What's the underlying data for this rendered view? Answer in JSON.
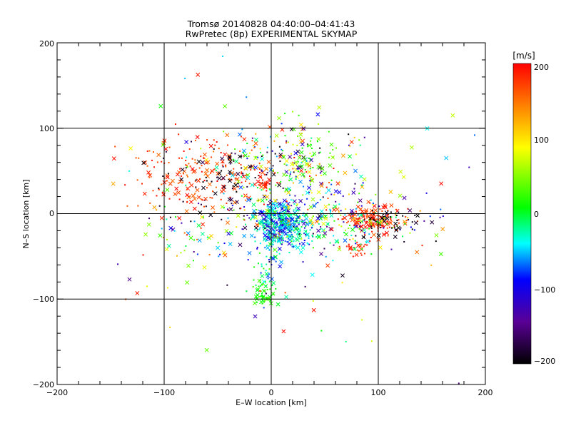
{
  "chart_data": {
    "type": "scatter",
    "title": "Tromsø 20140828 04:40:00–04:41:43",
    "subtitle": "RwPretec (8p) EXPERIMENTAL SKYMAP",
    "xlabel": "E–W location [km]",
    "ylabel": "N–S location [km]",
    "xlim": [
      -200,
      200
    ],
    "ylim": [
      -200,
      200
    ],
    "xticks": [
      "−200",
      "−100",
      "0",
      "100",
      "200"
    ],
    "yticks": [
      "−200",
      "−100",
      "0",
      "100",
      "200"
    ],
    "grid_lines_at": [
      -100,
      0,
      100
    ],
    "colorbar": {
      "label": "[m/s]",
      "min": -200,
      "max": 200,
      "ticks": [
        "200",
        "100",
        "0",
        "−100",
        "−200"
      ],
      "stops": [
        "#000000",
        "#5a0096",
        "#0000ff",
        "#00ffff",
        "#00ff00",
        "#ffff00",
        "#ff8000",
        "#ff0000"
      ]
    },
    "markers": [
      "dot",
      "cross"
    ],
    "clusters": [
      {
        "name": "core",
        "cx": 8,
        "cy": -10,
        "sx": 12,
        "sy": 12,
        "n": 320,
        "vmin": -130,
        "vmax": -10
      },
      {
        "name": "core-cyan",
        "cx": 20,
        "cy": -15,
        "sx": 18,
        "sy": 12,
        "n": 120,
        "vmin": -60,
        "vmax": 10
      },
      {
        "name": "south-green",
        "cx": -8,
        "cy": -92,
        "sx": 6,
        "sy": 7,
        "n": 55,
        "vmin": -10,
        "vmax": 40
      },
      {
        "name": "south-trail",
        "cx": -3,
        "cy": -55,
        "sx": 5,
        "sy": 25,
        "n": 45,
        "vmin": -90,
        "vmax": 30
      },
      {
        "name": "east-red",
        "cx": 95,
        "cy": -8,
        "sx": 14,
        "sy": 8,
        "n": 140,
        "vmin": 160,
        "vmax": 200
      },
      {
        "name": "east-mixed",
        "cx": 85,
        "cy": -5,
        "sx": 35,
        "sy": 18,
        "n": 120,
        "vmin": -200,
        "vmax": 200
      },
      {
        "name": "east-black",
        "cx": 110,
        "cy": -12,
        "sx": 15,
        "sy": 10,
        "n": 40,
        "vmin": -200,
        "vmax": -180
      },
      {
        "name": "nw-red",
        "cx": -60,
        "cy": 45,
        "sx": 35,
        "sy": 22,
        "n": 220,
        "vmin": 150,
        "vmax": 200
      },
      {
        "name": "nw-black",
        "cx": -40,
        "cy": 40,
        "sx": 30,
        "sy": 25,
        "n": 90,
        "vmin": -200,
        "vmax": -170
      },
      {
        "name": "north-mixed",
        "cx": 10,
        "cy": 60,
        "sx": 25,
        "sy": 25,
        "n": 140,
        "vmin": -200,
        "vmax": 200
      },
      {
        "name": "ne-green",
        "cx": 35,
        "cy": 70,
        "sx": 12,
        "sy": 20,
        "n": 60,
        "vmin": 0,
        "vmax": 90
      },
      {
        "name": "red-34",
        "cx": -5,
        "cy": 34,
        "sx": 4,
        "sy": 3,
        "n": 25,
        "vmin": 170,
        "vmax": 200
      },
      {
        "name": "red-south-east",
        "cx": 78,
        "cy": -42,
        "sx": 8,
        "sy": 4,
        "n": 25,
        "vmin": 150,
        "vmax": 200
      },
      {
        "name": "central-ring",
        "cx": 30,
        "cy": 5,
        "sx": 40,
        "sy": 30,
        "n": 160,
        "vmin": -150,
        "vmax": 120
      },
      {
        "name": "sparse",
        "cx": 0,
        "cy": 0,
        "sx": 90,
        "sy": 65,
        "n": 150,
        "vmin": -200,
        "vmax": 200
      },
      {
        "name": "west-band",
        "cx": -70,
        "cy": -30,
        "sx": 30,
        "sy": 30,
        "n": 50,
        "vmin": -60,
        "vmax": 200
      }
    ]
  }
}
